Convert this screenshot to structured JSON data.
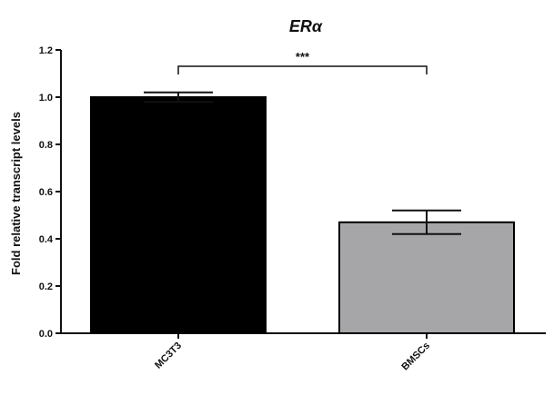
{
  "colors": {
    "axis": "#111111",
    "mc3t3_bar": "#000000",
    "bmsc_bar": "#a6a6a8",
    "error_bar": "#111111"
  },
  "chart_data": {
    "type": "bar",
    "title": "ERα",
    "xlabel": "",
    "ylabel": "Fold relative transcript levels",
    "categories": [
      "MC3T3",
      "BMSCs"
    ],
    "values": [
      1.0,
      0.47
    ],
    "errors": [
      0.02,
      0.05
    ],
    "ylim": [
      0,
      1.2
    ],
    "yticks": [
      "0.0",
      "0.2",
      "0.4",
      "0.6",
      "0.8",
      "1.0",
      "1.2"
    ],
    "grid": false,
    "annotations": [
      {
        "type": "significance-bracket",
        "between": [
          "MC3T3",
          "BMSCs"
        ],
        "label": "***"
      }
    ]
  }
}
